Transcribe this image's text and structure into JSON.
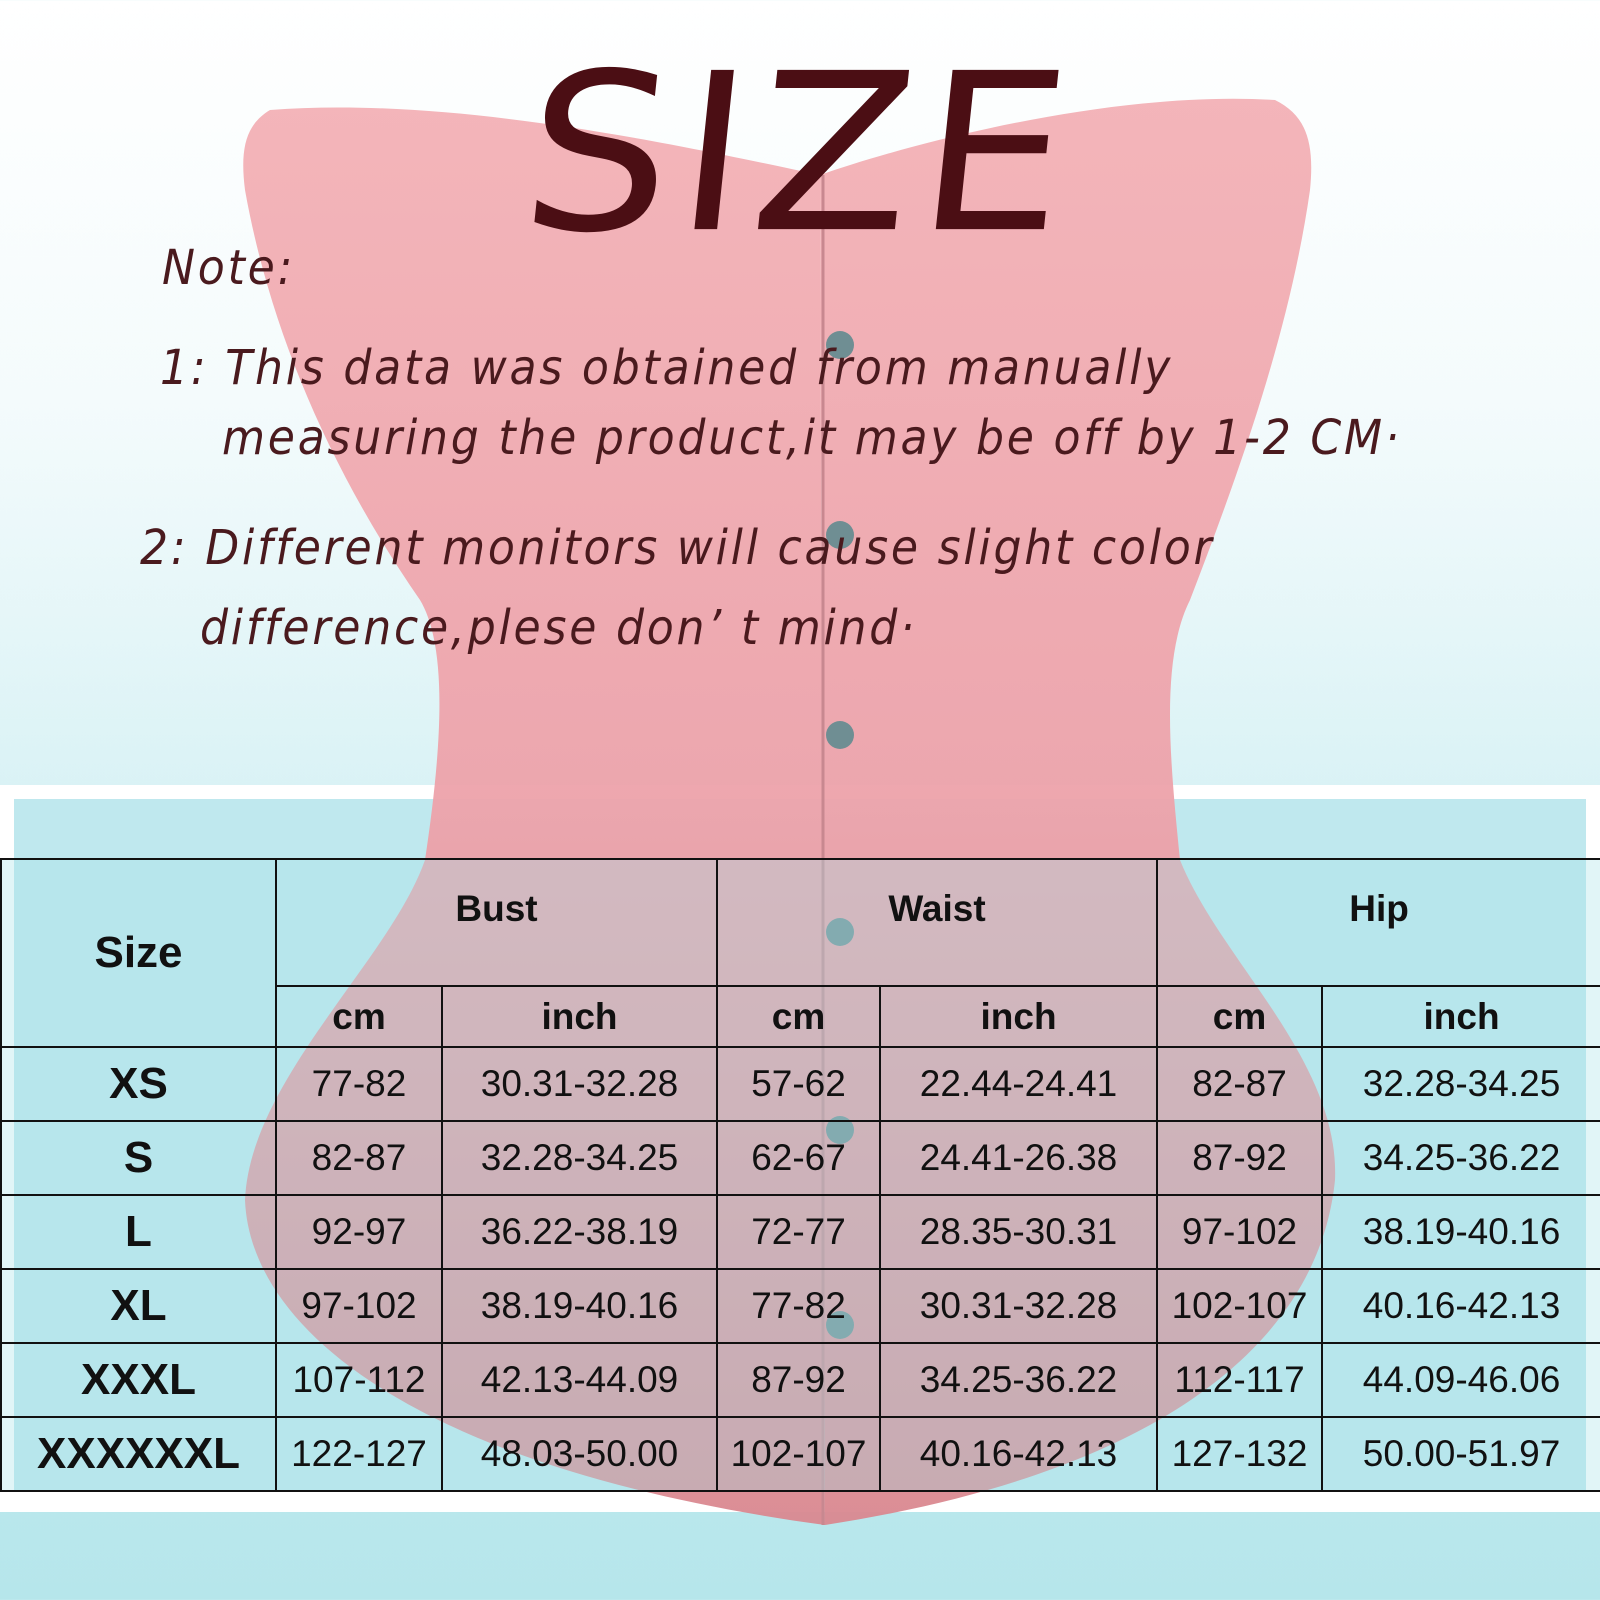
{
  "title": "SIZE",
  "notes": {
    "heading": "Note:",
    "line1a": "1: This data was obtained from manually",
    "line1b": "measuring the product,it may be off by 1-2 CM·",
    "line2a": "2: Different monitors will cause slight color",
    "line2b": "difference,plese don’ t mind·"
  },
  "colors": {
    "title": "#4b0e14",
    "corset": "#f0a9b0",
    "background": "#c4ecf0"
  },
  "table": {
    "size_header": "Size",
    "groups": [
      "Bust",
      "Waist",
      "Hip"
    ],
    "units": [
      "cm",
      "inch",
      "cm",
      "inch",
      "cm",
      "inch"
    ],
    "rows": [
      {
        "size": "XS",
        "values": [
          "77-82",
          "30.31-32.28",
          "57-62",
          "22.44-24.41",
          "82-87",
          "32.28-34.25"
        ]
      },
      {
        "size": "S",
        "values": [
          "82-87",
          "32.28-34.25",
          "62-67",
          "24.41-26.38",
          "87-92",
          "34.25-36.22"
        ]
      },
      {
        "size": "L",
        "values": [
          "92-97",
          "36.22-38.19",
          "72-77",
          "28.35-30.31",
          "97-102",
          "38.19-40.16"
        ]
      },
      {
        "size": "XL",
        "values": [
          "97-102",
          "38.19-40.16",
          "77-82",
          "30.31-32.28",
          "102-107",
          "40.16-42.13"
        ]
      },
      {
        "size": "XXXL",
        "values": [
          "107-112",
          "42.13-44.09",
          "87-92",
          "34.25-36.22",
          "112-117",
          "44.09-46.06"
        ]
      },
      {
        "size": "XXXXXXL",
        "values": [
          "122-127",
          "48.03-50.00",
          "102-107",
          "40.16-42.13",
          "127-132",
          "50.00-51.97"
        ]
      }
    ]
  }
}
